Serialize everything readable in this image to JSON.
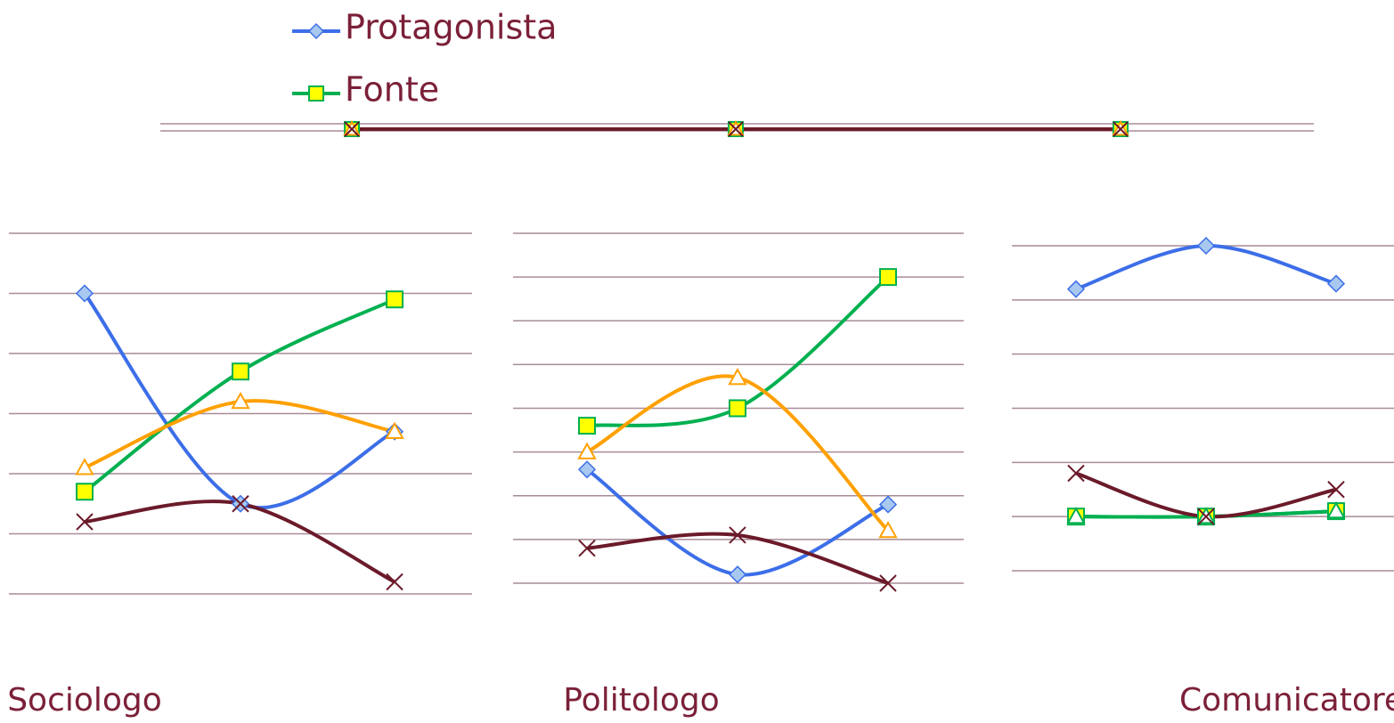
{
  "chart_data": [
    {
      "type": "line",
      "categories": [
        null,
        null,
        null
      ],
      "ylim": [
        0,
        1
      ],
      "yticks": [
        0,
        1
      ],
      "grid": true,
      "legend": "top",
      "series": [
        {
          "name": "Protagonista",
          "color": "#3c6ee8",
          "marker": "diamond",
          "values": [
            0.25,
            0.25,
            0.25
          ]
        },
        {
          "name": "Fonte",
          "color": "#00b050",
          "marker": "square",
          "values": [
            0.25,
            0.25,
            0.25
          ]
        },
        {
          "color": "#ffa000",
          "marker": "triangle",
          "values": [
            0.25,
            0.25,
            0.25
          ]
        },
        {
          "color": "#6b1a2a",
          "marker": "x",
          "values": [
            0.25,
            0.25,
            0.25
          ]
        }
      ]
    },
    {
      "type": "line",
      "title": "Sociologo",
      "categories": [
        null,
        null,
        null
      ],
      "ylim": [
        0,
        6
      ],
      "yticks": [
        0,
        1,
        2,
        3,
        4,
        5,
        6
      ],
      "grid": true,
      "series": [
        {
          "color": "#3c6ee8",
          "marker": "diamond",
          "values": [
            5.0,
            1.5,
            2.7
          ]
        },
        {
          "color": "#00b050",
          "marker": "square",
          "values": [
            1.7,
            3.7,
            4.9
          ]
        },
        {
          "color": "#ffa000",
          "marker": "triangle",
          "values": [
            2.1,
            3.2,
            2.7
          ]
        },
        {
          "color": "#6b1a2a",
          "marker": "x",
          "values": [
            1.2,
            1.5,
            0.2
          ]
        }
      ]
    },
    {
      "type": "line",
      "title": "Politologo",
      "categories": [
        null,
        null,
        null
      ],
      "ylim": [
        0,
        8
      ],
      "yticks": [
        0,
        1,
        2,
        3,
        4,
        5,
        6,
        7,
        8
      ],
      "grid": true,
      "series": [
        {
          "color": "#3c6ee8",
          "marker": "diamond",
          "values": [
            2.6,
            0.2,
            1.8
          ]
        },
        {
          "color": "#00b050",
          "marker": "square",
          "values": [
            3.6,
            4.0,
            7.0
          ]
        },
        {
          "color": "#ffa000",
          "marker": "triangle",
          "values": [
            3.0,
            4.7,
            1.2
          ]
        },
        {
          "color": "#6b1a2a",
          "marker": "x",
          "values": [
            0.8,
            1.1,
            0.0
          ]
        }
      ]
    },
    {
      "type": "line",
      "title": "Comunicatore",
      "categories": [
        null,
        null,
        null
      ],
      "ylim": [
        0,
        6
      ],
      "yticks": [
        0,
        1,
        2,
        3,
        4,
        5,
        6
      ],
      "grid": true,
      "series": [
        {
          "color": "#3c6ee8",
          "marker": "diamond",
          "values": [
            5.2,
            6.0,
            5.3
          ]
        },
        {
          "color": "#00b050",
          "marker": "square",
          "values": [
            1.0,
            1.0,
            1.1
          ]
        },
        {
          "color": "#00b050",
          "marker": "triangle",
          "values": [
            1.0,
            1.0,
            1.1
          ]
        },
        {
          "color": "#6b1a2a",
          "marker": "x",
          "values": [
            1.8,
            1.0,
            1.5
          ]
        }
      ]
    }
  ]
}
